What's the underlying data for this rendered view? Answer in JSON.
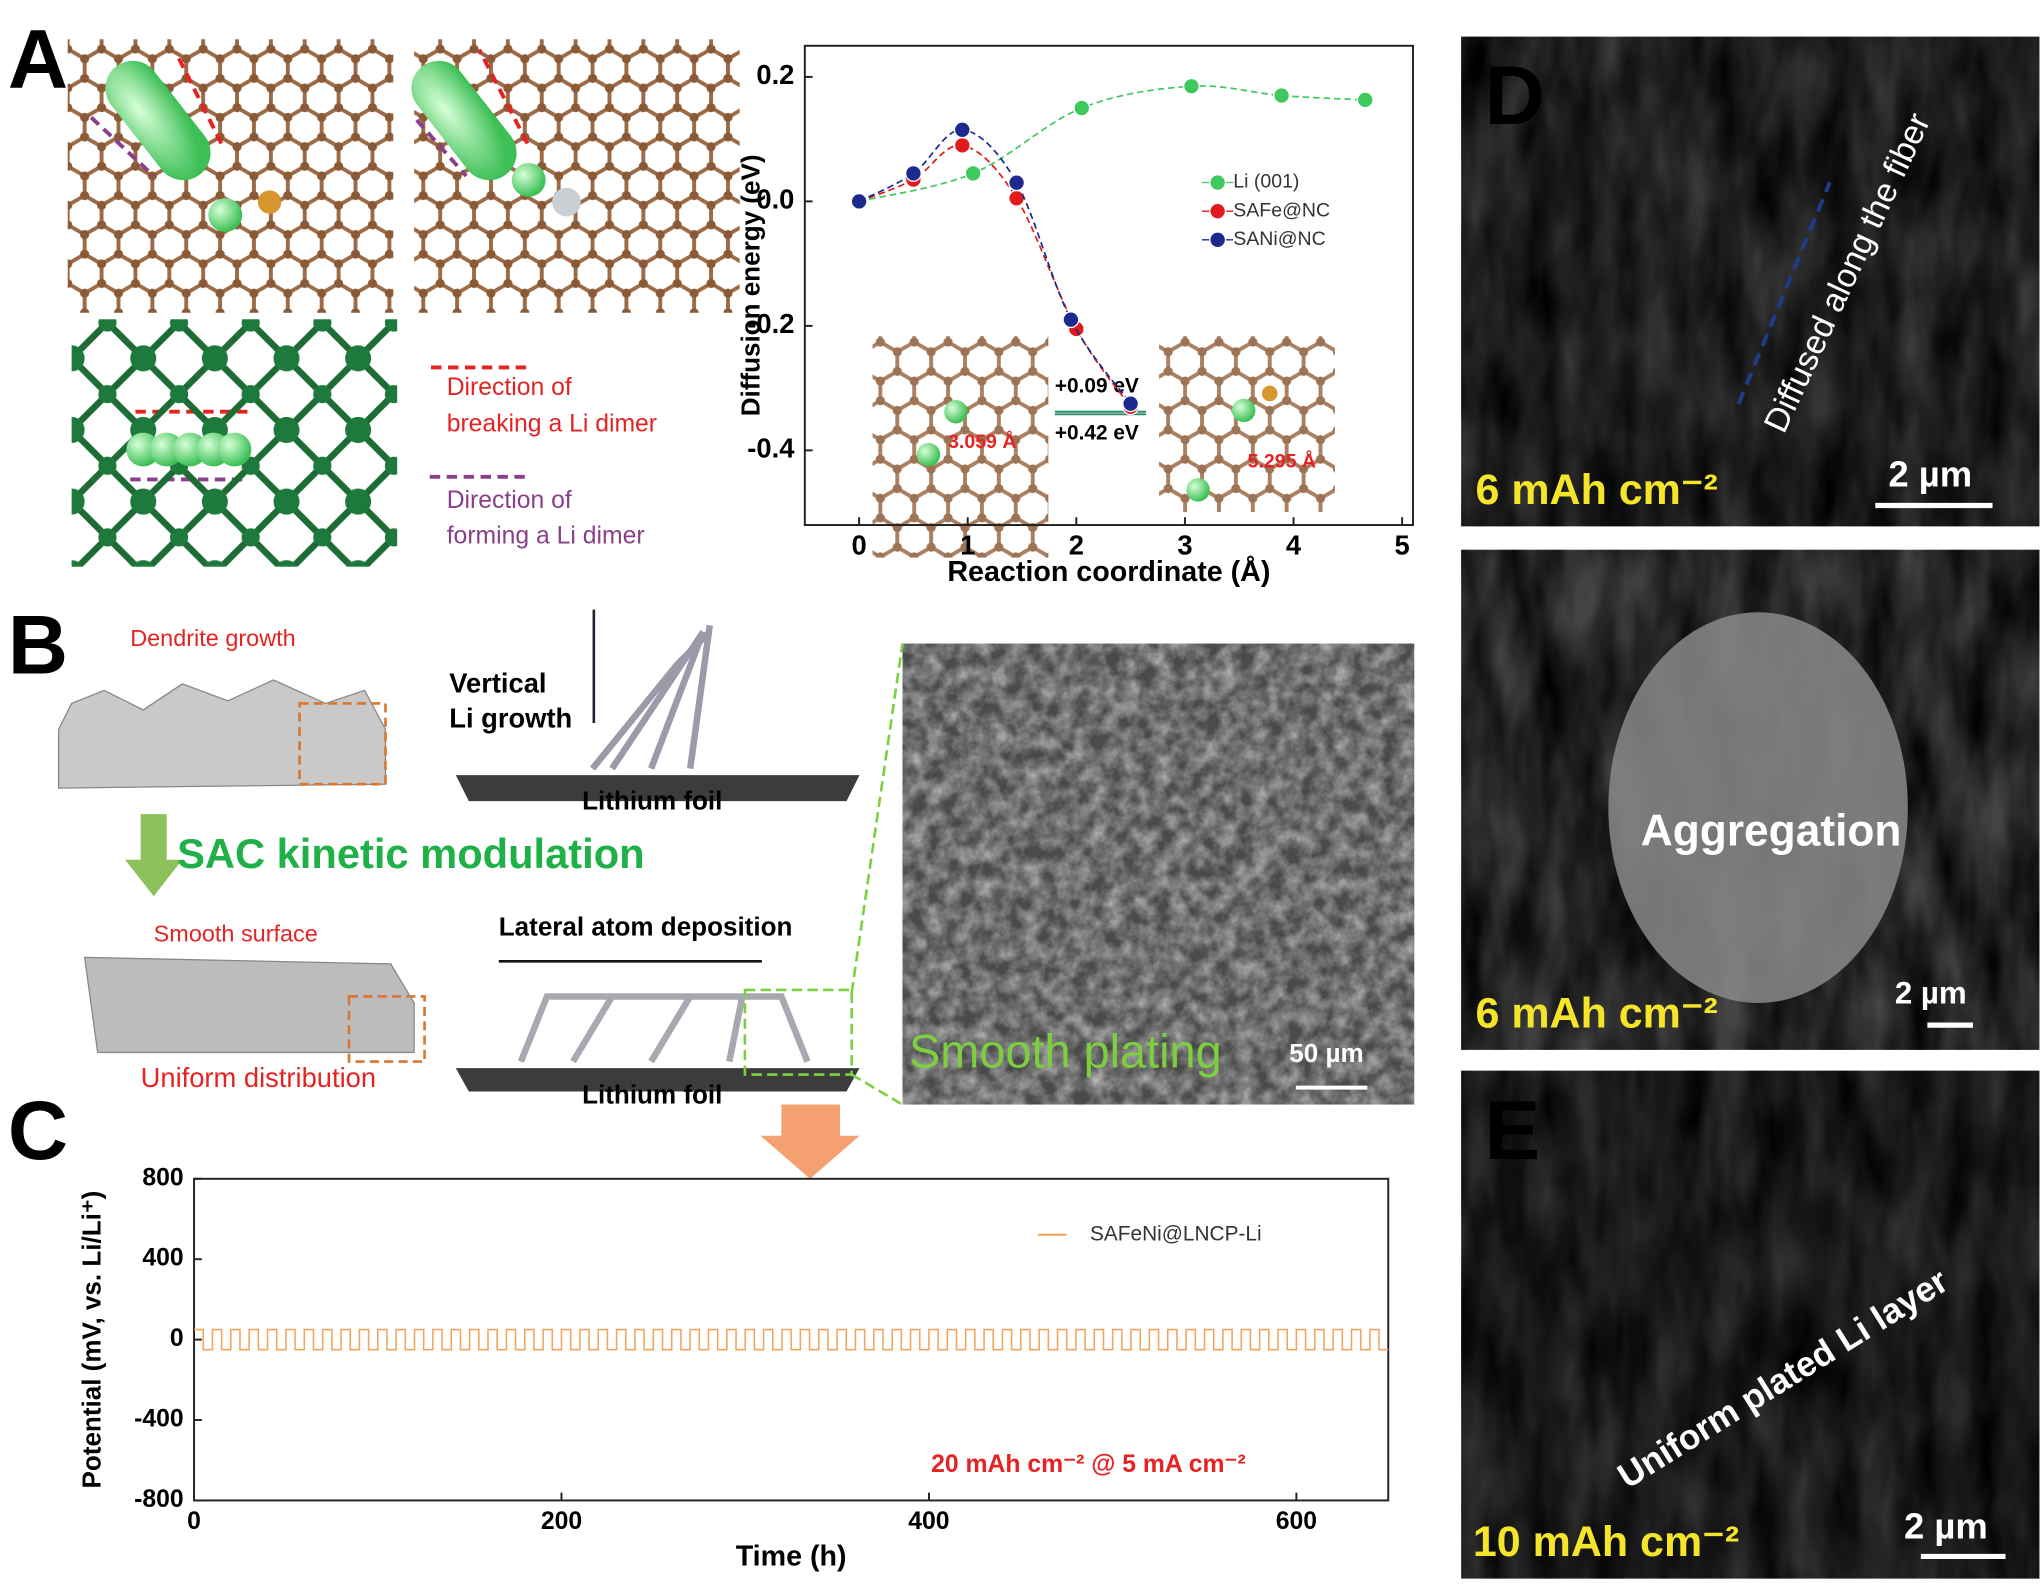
{
  "panels": {
    "labels": [
      "A",
      "B",
      "C",
      "D",
      "E"
    ],
    "a": {
      "break": [
        "Direction of",
        "breaking a Li dimer"
      ],
      "form": [
        "Direction of",
        "forming a Li dimer"
      ]
    },
    "b": {
      "dendrite": "Dendrite growth",
      "vertical": [
        "Vertical",
        "Li growth"
      ],
      "foil_top": "Lithium foil",
      "modulation": "SAC kinetic modulation",
      "smooth_surface": "Smooth surface",
      "lateral": "Lateral atom deposition",
      "uniform": "Uniform distribution",
      "foil_bottom": "Lithium foil",
      "smooth_plating": "Smooth plating",
      "scale": "50 µm"
    },
    "d": {
      "diffused": "Diffused along  the fiber",
      "cap_top": "6 mAh cm⁻²",
      "scale_top": "2 µm",
      "aggregation": "Aggregation",
      "cap_mid": "6 mAh cm⁻²",
      "scale_mid": "2 µm"
    },
    "e": {
      "layer": "Uniform plated Li layer",
      "cap": "10 mAh cm⁻²",
      "scale": "2 µm"
    }
  },
  "chart_data": [
    {
      "type": "line",
      "x_label": "Reaction  coordinate (Å)",
      "y_label": "Diffusion energy (eV)",
      "xlim": [
        -0.5,
        5.1
      ],
      "ylim": [
        -0.52,
        0.25
      ],
      "xticks": [
        0,
        1,
        2,
        3,
        4,
        5
      ],
      "yticks": [
        -0.4,
        -0.2,
        {
          "value": 0,
          "label": "0.0"
        },
        0.2
      ],
      "legend": "upper right",
      "markers": true,
      "line_style": "dashed",
      "annotations": [
        "+0.09 eV",
        "+0.42 eV",
        "3.059 Å",
        "5.295 Å"
      ],
      "series": [
        {
          "name": "Li (001)",
          "color": "#3fc85c",
          "x": [
            0,
            1.05,
            2.05,
            3.06,
            3.89,
            4.66
          ],
          "values": [
            0,
            0.045,
            0.15,
            0.185,
            0.17,
            0.163
          ]
        },
        {
          "name": "SAFe@NC",
          "color": "#e11b1b",
          "x": [
            0,
            0.5,
            0.95,
            1.45,
            2.0,
            2.5
          ],
          "values": [
            0,
            0.035,
            0.09,
            0.005,
            -0.205,
            -0.33
          ]
        },
        {
          "name": "SANi@NC",
          "color": "#1b2a8c",
          "x": [
            0,
            0.5,
            0.95,
            1.45,
            1.95,
            2.5
          ],
          "values": [
            0,
            0.045,
            0.115,
            0.03,
            -0.19,
            -0.325
          ]
        }
      ]
    },
    {
      "type": "line",
      "x_label": "Time (h)",
      "y_label": "Potential (mV, vs. Li/Li⁺)",
      "xlim": [
        0,
        650
      ],
      "ylim": [
        -800,
        800
      ],
      "xticks": [
        0,
        200,
        400,
        600
      ],
      "yticks": [
        -800,
        -400,
        0,
        400,
        800
      ],
      "legend": "upper right",
      "markers": false,
      "line_style": "solid",
      "annotations": [
        "20 mAh cm⁻² @ 5 mA cm⁻²"
      ],
      "series": [
        {
          "name": "SAFeNi@LNCP-Li",
          "color": "#f2a45e",
          "x": [
            0,
            5,
            5,
            10,
            10,
            15,
            15,
            20,
            20,
            25,
            25,
            30,
            30,
            35,
            35,
            40,
            40,
            45,
            45,
            50,
            50,
            55,
            55,
            60,
            60,
            65,
            65,
            70,
            70,
            75,
            75,
            80,
            80,
            85,
            85,
            90,
            90,
            95,
            95,
            100,
            100,
            105,
            105,
            110,
            110,
            115,
            115,
            120,
            120,
            125,
            125,
            130,
            130,
            135,
            135,
            140,
            140,
            145,
            145,
            150,
            150,
            155,
            155,
            160,
            160,
            165,
            165,
            170,
            170,
            175,
            175,
            180,
            180,
            185,
            185,
            190,
            190,
            195,
            195,
            200,
            200,
            205,
            205,
            210,
            210,
            215,
            215,
            220,
            220,
            225,
            225,
            230,
            230,
            235,
            235,
            240,
            240,
            245,
            245,
            250,
            250,
            255,
            255,
            260,
            260,
            265,
            265,
            270,
            270,
            275,
            275,
            280,
            280,
            285,
            285,
            290,
            290,
            295,
            295,
            300,
            300,
            305,
            305,
            310,
            310,
            315,
            315,
            320,
            320,
            325,
            325,
            330,
            330,
            335,
            335,
            340,
            340,
            345,
            345,
            350,
            350,
            355,
            355,
            360,
            360,
            365,
            365,
            370,
            370,
            375,
            375,
            380,
            380,
            385,
            385,
            390,
            390,
            395,
            395,
            400,
            400,
            405,
            405,
            410,
            410,
            415,
            415,
            420,
            420,
            425,
            425,
            430,
            430,
            435,
            435,
            440,
            440,
            445,
            445,
            450,
            450,
            455,
            455,
            460,
            460,
            465,
            465,
            470,
            470,
            475,
            475,
            480,
            480,
            485,
            485,
            490,
            490,
            495,
            495,
            500,
            500,
            505,
            505,
            510,
            510,
            515,
            515,
            520,
            520,
            525,
            525,
            530,
            530,
            535,
            535,
            540,
            540,
            545,
            545,
            550,
            550,
            555,
            555,
            560,
            560,
            565,
            565,
            570,
            570,
            575,
            575,
            580,
            580,
            585,
            585,
            590,
            590,
            595,
            595,
            600,
            600,
            605,
            605,
            610,
            610,
            615,
            615,
            620,
            620,
            625,
            625,
            630,
            630,
            635,
            635,
            640,
            640,
            645,
            645,
            650
          ],
          "values": [
            50,
            50,
            -50,
            -50,
            50,
            50,
            -50,
            -50,
            50,
            50,
            -50,
            -50,
            50,
            50,
            -50,
            -50,
            50,
            50,
            -50,
            -50,
            50,
            50,
            -50,
            -50,
            50,
            50,
            -50,
            -50,
            50,
            50,
            -50,
            -50,
            50,
            50,
            -50,
            -50,
            50,
            50,
            -50,
            -50,
            50,
            50,
            -50,
            -50,
            50,
            50,
            -50,
            -50,
            50,
            50,
            -50,
            -50,
            50,
            50,
            -50,
            -50,
            50,
            50,
            -50,
            -50,
            50,
            50,
            -50,
            -50,
            50,
            50,
            -50,
            -50,
            50,
            50,
            -50,
            -50,
            50,
            50,
            -50,
            -50,
            50,
            50,
            -50,
            -50,
            50,
            50,
            -50,
            -50,
            50,
            50,
            -50,
            -50,
            50,
            50,
            -50,
            -50,
            50,
            50,
            -50,
            -50,
            50,
            50,
            -50,
            -50,
            50,
            50,
            -50,
            -50,
            50,
            50,
            -50,
            -50,
            50,
            50,
            -50,
            -50,
            50,
            50,
            -50,
            -50,
            50,
            50,
            -50,
            -50,
            50,
            50,
            -50,
            -50,
            50,
            50,
            -50,
            -50,
            50,
            50,
            -50,
            -50,
            50,
            50,
            -50,
            -50,
            50,
            50,
            -50,
            -50,
            50,
            50,
            -50,
            -50,
            50,
            50,
            -50,
            -50,
            50,
            50,
            -50,
            -50,
            50,
            50,
            -50,
            -50,
            50,
            50,
            -50,
            -50,
            50,
            50,
            -50,
            -50,
            50,
            50,
            -50,
            -50,
            50,
            50,
            -50,
            -50,
            50,
            50,
            -50,
            -50,
            50,
            50,
            -50,
            -50,
            50,
            50,
            -50,
            -50,
            50,
            50,
            -50,
            -50,
            50,
            50,
            -50,
            -50,
            50,
            50,
            -50,
            -50,
            50,
            50,
            -50,
            -50,
            50,
            50,
            -50,
            -50,
            50,
            50,
            -50,
            -50,
            50,
            50,
            -50,
            -50,
            50,
            50,
            -50,
            -50,
            50,
            50,
            -50,
            -50,
            50,
            50,
            -50,
            -50,
            50,
            50,
            -50,
            -50,
            50,
            50,
            -50,
            -50,
            50,
            50,
            -50,
            -50,
            50,
            50,
            -50,
            -50,
            50,
            50,
            -50,
            -50,
            50,
            50,
            -50,
            -50,
            50,
            50,
            -50,
            -50,
            50,
            50,
            -50,
            -50,
            50,
            50,
            -50,
            -50
          ]
        }
      ]
    }
  ]
}
